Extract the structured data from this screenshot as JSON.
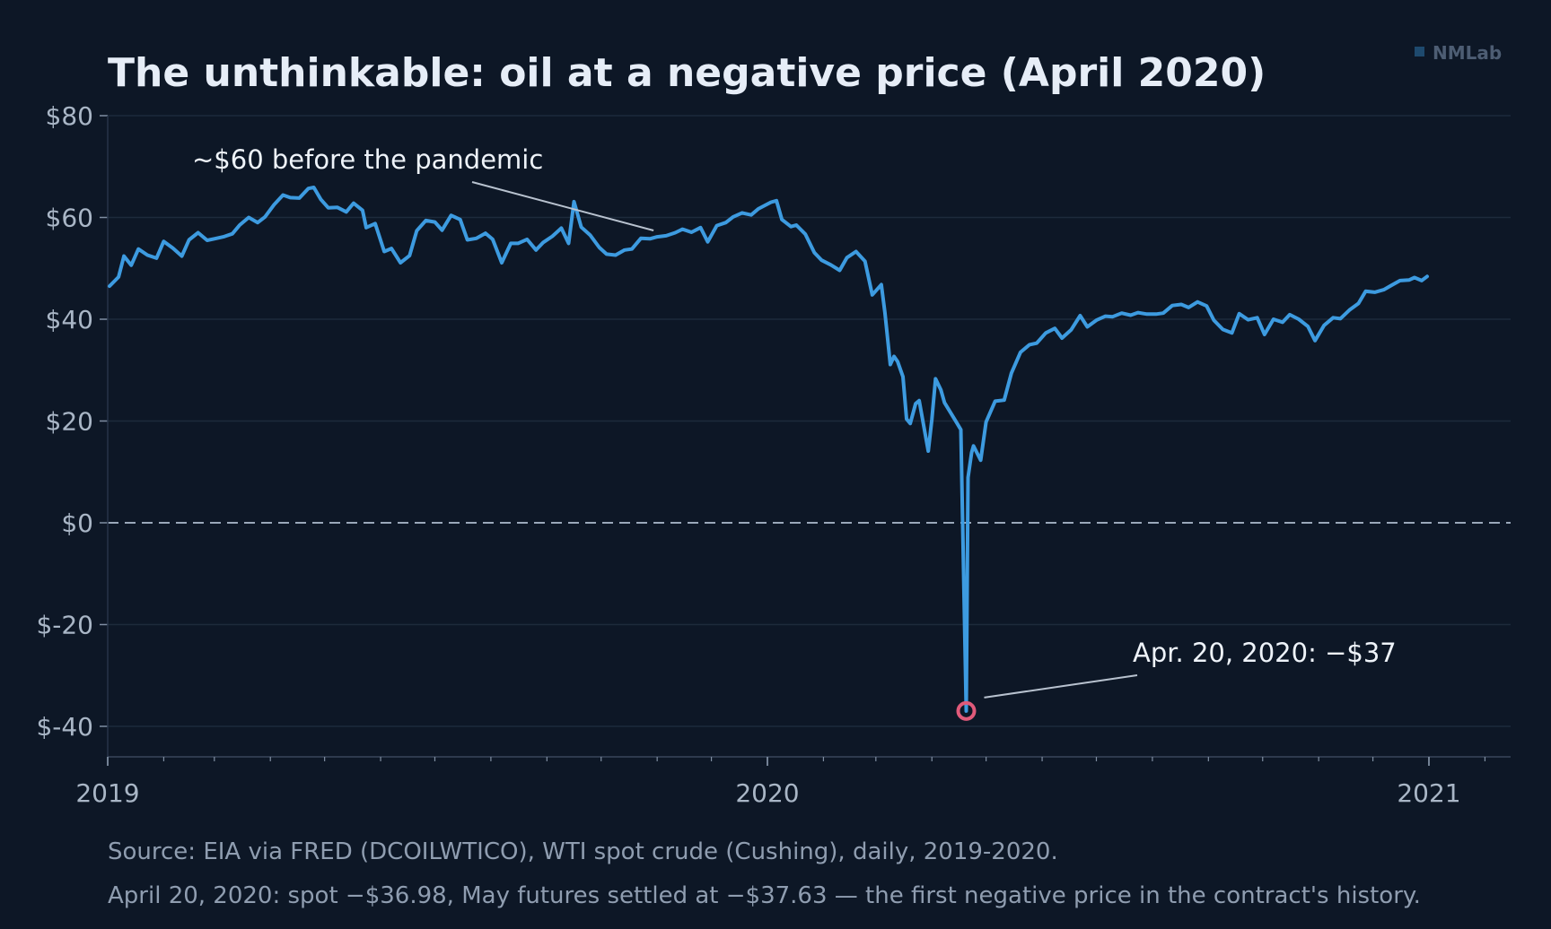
{
  "chart_data": {
    "type": "line",
    "title": "The unthinkable: oil at a negative price (April 2020)",
    "xlabel": "",
    "ylabel": "",
    "x_range": [
      "2019-01-01",
      "2021-03-01"
    ],
    "ylim": [
      -45,
      80
    ],
    "y_ticks": [
      80,
      60,
      40,
      20,
      0,
      -20,
      -40
    ],
    "y_tick_labels": [
      "$80",
      "$60",
      "$40",
      "$20",
      "$0",
      "$-20",
      "$-40"
    ],
    "x_ticks": [
      "2019-01-01",
      "2020-01-01",
      "2021-01-01"
    ],
    "x_tick_labels": [
      "2019",
      "2020",
      "2021"
    ],
    "grid": true,
    "zero_line": {
      "y": 0,
      "style": "dashed"
    },
    "series": [
      {
        "color": "#3d9be0",
        "points": [
          [
            "2019-01-02",
            46.5
          ],
          [
            "2019-01-07",
            48.3
          ],
          [
            "2019-01-10",
            52.4
          ],
          [
            "2019-01-14",
            50.6
          ],
          [
            "2019-01-18",
            53.8
          ],
          [
            "2019-01-23",
            52.6
          ],
          [
            "2019-01-28",
            52.0
          ],
          [
            "2019-02-01",
            55.3
          ],
          [
            "2019-02-06",
            54.0
          ],
          [
            "2019-02-11",
            52.4
          ],
          [
            "2019-02-15",
            55.6
          ],
          [
            "2019-02-20",
            57.0
          ],
          [
            "2019-02-25",
            55.5
          ],
          [
            "2019-03-01",
            55.8
          ],
          [
            "2019-03-06",
            56.2
          ],
          [
            "2019-03-11",
            56.8
          ],
          [
            "2019-03-15",
            58.5
          ],
          [
            "2019-03-20",
            60.0
          ],
          [
            "2019-03-25",
            59.0
          ],
          [
            "2019-03-29",
            60.1
          ],
          [
            "2019-04-03",
            62.5
          ],
          [
            "2019-04-08",
            64.4
          ],
          [
            "2019-04-12",
            63.9
          ],
          [
            "2019-04-17",
            63.8
          ],
          [
            "2019-04-22",
            65.7
          ],
          [
            "2019-04-25",
            65.9
          ],
          [
            "2019-04-29",
            63.5
          ],
          [
            "2019-05-03",
            61.9
          ],
          [
            "2019-05-08",
            62.0
          ],
          [
            "2019-05-13",
            61.1
          ],
          [
            "2019-05-17",
            62.8
          ],
          [
            "2019-05-22",
            61.4
          ],
          [
            "2019-05-24",
            58.0
          ],
          [
            "2019-05-29",
            58.8
          ],
          [
            "2019-06-03",
            53.3
          ],
          [
            "2019-06-07",
            53.9
          ],
          [
            "2019-06-12",
            51.1
          ],
          [
            "2019-06-17",
            52.5
          ],
          [
            "2019-06-21",
            57.4
          ],
          [
            "2019-06-26",
            59.4
          ],
          [
            "2019-07-01",
            59.1
          ],
          [
            "2019-07-05",
            57.5
          ],
          [
            "2019-07-10",
            60.4
          ],
          [
            "2019-07-15",
            59.6
          ],
          [
            "2019-07-19",
            55.6
          ],
          [
            "2019-07-24",
            55.9
          ],
          [
            "2019-07-29",
            56.9
          ],
          [
            "2019-08-02",
            55.7
          ],
          [
            "2019-08-07",
            51.1
          ],
          [
            "2019-08-12",
            54.9
          ],
          [
            "2019-08-16",
            54.9
          ],
          [
            "2019-08-21",
            55.7
          ],
          [
            "2019-08-26",
            53.6
          ],
          [
            "2019-08-30",
            55.1
          ],
          [
            "2019-09-04",
            56.3
          ],
          [
            "2019-09-09",
            57.9
          ],
          [
            "2019-09-13",
            54.9
          ],
          [
            "2019-09-16",
            63.1
          ],
          [
            "2019-09-20",
            58.1
          ],
          [
            "2019-09-25",
            56.5
          ],
          [
            "2019-09-30",
            54.1
          ],
          [
            "2019-10-04",
            52.8
          ],
          [
            "2019-10-09",
            52.6
          ],
          [
            "2019-10-14",
            53.6
          ],
          [
            "2019-10-18",
            53.8
          ],
          [
            "2019-10-23",
            55.9
          ],
          [
            "2019-10-28",
            55.8
          ],
          [
            "2019-11-01",
            56.2
          ],
          [
            "2019-11-06",
            56.4
          ],
          [
            "2019-11-11",
            57.0
          ],
          [
            "2019-11-15",
            57.7
          ],
          [
            "2019-11-20",
            57.1
          ],
          [
            "2019-11-25",
            58.0
          ],
          [
            "2019-11-29",
            55.2
          ],
          [
            "2019-12-04",
            58.4
          ],
          [
            "2019-12-09",
            59.0
          ],
          [
            "2019-12-13",
            60.1
          ],
          [
            "2019-12-18",
            60.9
          ],
          [
            "2019-12-23",
            60.5
          ],
          [
            "2019-12-27",
            61.7
          ],
          [
            "2020-01-03",
            63.0
          ],
          [
            "2020-01-06",
            63.3
          ],
          [
            "2020-01-09",
            59.6
          ],
          [
            "2020-01-14",
            58.2
          ],
          [
            "2020-01-17",
            58.5
          ],
          [
            "2020-01-22",
            56.7
          ],
          [
            "2020-01-27",
            53.1
          ],
          [
            "2020-01-31",
            51.6
          ],
          [
            "2020-02-05",
            50.7
          ],
          [
            "2020-02-10",
            49.6
          ],
          [
            "2020-02-14",
            52.1
          ],
          [
            "2020-02-19",
            53.3
          ],
          [
            "2020-02-24",
            51.4
          ],
          [
            "2020-02-28",
            44.8
          ],
          [
            "2020-03-04",
            46.8
          ],
          [
            "2020-03-06",
            41.3
          ],
          [
            "2020-03-09",
            31.1
          ],
          [
            "2020-03-11",
            32.7
          ],
          [
            "2020-03-13",
            31.7
          ],
          [
            "2020-03-16",
            28.7
          ],
          [
            "2020-03-18",
            20.4
          ],
          [
            "2020-03-20",
            19.5
          ],
          [
            "2020-03-23",
            23.4
          ],
          [
            "2020-03-25",
            24.0
          ],
          [
            "2020-03-30",
            14.1
          ],
          [
            "2020-04-01",
            20.3
          ],
          [
            "2020-04-03",
            28.3
          ],
          [
            "2020-04-06",
            26.1
          ],
          [
            "2020-04-08",
            23.6
          ],
          [
            "2020-04-14",
            20.1
          ],
          [
            "2020-04-17",
            18.3
          ],
          [
            "2020-04-20",
            -36.98
          ],
          [
            "2020-04-21",
            8.9
          ],
          [
            "2020-04-23",
            13.8
          ],
          [
            "2020-04-24",
            15.1
          ],
          [
            "2020-04-28",
            12.3
          ],
          [
            "2020-05-01",
            19.8
          ],
          [
            "2020-05-06",
            23.9
          ],
          [
            "2020-05-11",
            24.1
          ],
          [
            "2020-05-15",
            29.4
          ],
          [
            "2020-05-20",
            33.5
          ],
          [
            "2020-05-25",
            35.0
          ],
          [
            "2020-05-29",
            35.3
          ],
          [
            "2020-06-03",
            37.3
          ],
          [
            "2020-06-08",
            38.2
          ],
          [
            "2020-06-12",
            36.3
          ],
          [
            "2020-06-17",
            37.9
          ],
          [
            "2020-06-22",
            40.7
          ],
          [
            "2020-06-26",
            38.5
          ],
          [
            "2020-07-01",
            39.8
          ],
          [
            "2020-07-06",
            40.6
          ],
          [
            "2020-07-10",
            40.5
          ],
          [
            "2020-07-15",
            41.2
          ],
          [
            "2020-07-20",
            40.8
          ],
          [
            "2020-07-24",
            41.3
          ],
          [
            "2020-07-29",
            41.0
          ],
          [
            "2020-08-03",
            41.0
          ],
          [
            "2020-08-07",
            41.2
          ],
          [
            "2020-08-12",
            42.7
          ],
          [
            "2020-08-17",
            42.9
          ],
          [
            "2020-08-21",
            42.3
          ],
          [
            "2020-08-26",
            43.4
          ],
          [
            "2020-08-31",
            42.6
          ],
          [
            "2020-09-04",
            39.8
          ],
          [
            "2020-09-09",
            38.0
          ],
          [
            "2020-09-14",
            37.3
          ],
          [
            "2020-09-18",
            41.1
          ],
          [
            "2020-09-23",
            39.9
          ],
          [
            "2020-09-28",
            40.3
          ],
          [
            "2020-10-02",
            37.0
          ],
          [
            "2020-10-07",
            40.0
          ],
          [
            "2020-10-12",
            39.4
          ],
          [
            "2020-10-16",
            40.9
          ],
          [
            "2020-10-21",
            40.0
          ],
          [
            "2020-10-26",
            38.6
          ],
          [
            "2020-10-30",
            35.8
          ],
          [
            "2020-11-04",
            38.8
          ],
          [
            "2020-11-09",
            40.3
          ],
          [
            "2020-11-13",
            40.1
          ],
          [
            "2020-11-18",
            41.8
          ],
          [
            "2020-11-23",
            43.1
          ],
          [
            "2020-11-27",
            45.5
          ],
          [
            "2020-12-02",
            45.3
          ],
          [
            "2020-12-07",
            45.8
          ],
          [
            "2020-12-11",
            46.6
          ],
          [
            "2020-12-16",
            47.6
          ],
          [
            "2020-12-21",
            47.7
          ],
          [
            "2020-12-24",
            48.2
          ],
          [
            "2020-12-28",
            47.6
          ],
          [
            "2020-12-31",
            48.4
          ]
        ]
      }
    ],
    "annotations": [
      {
        "text": "~$60 before the pandemic",
        "points_to": [
          "2019-10-30",
          58.5
        ]
      },
      {
        "text": "Apr. 20, 2020: −$37",
        "points_to": [
          "2020-04-20",
          -36.98
        ],
        "marker_color": "#e05a7a"
      }
    ]
  },
  "footer": {
    "source_line": "Source: EIA via FRED (DCOILWTICO), WTI spot crude (Cushing), daily, 2019-2020.",
    "note_line": "April 20, 2020: spot −$36.98, May futures settled at −$37.63 — the first negative price in the contract's history."
  },
  "watermark": {
    "text": "NMLab"
  },
  "colors": {
    "background": "#0d1726",
    "line": "#3d9be0",
    "grid": "#1d2a3b",
    "marker": "#e05a7a",
    "text": "#e6edf7",
    "muted": "#a9b6c6"
  }
}
